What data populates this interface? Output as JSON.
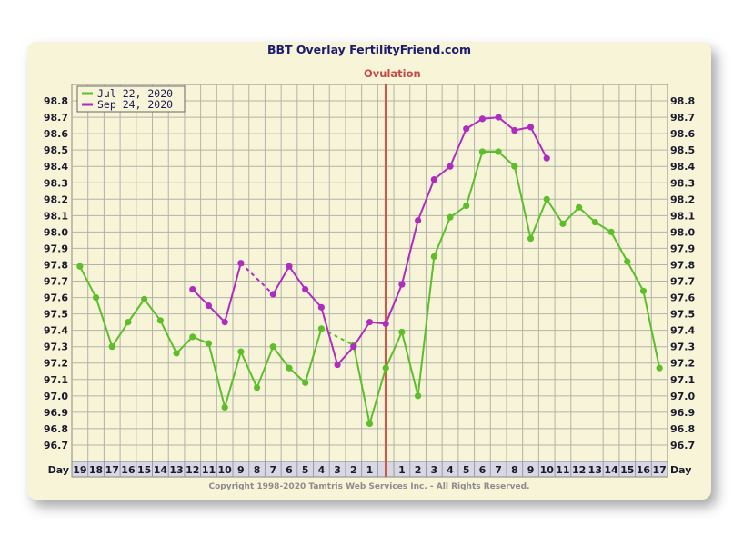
{
  "title": "BBT Overlay FertilityFriend.com",
  "ovulation_label": "Ovulation",
  "copyright": "Copyright 1998-2020 Tamtris Web Services Inc. - All Rights Reserved.",
  "x_axis_end_label": "Day",
  "colors": {
    "series1": "#5cbf2a",
    "series2": "#b02cc0",
    "ovulation": "#c85a4a",
    "grid": "#b3b3a8",
    "background": "#f7f4d8",
    "x_band": "#d8d8e4"
  },
  "chart_data": {
    "type": "line",
    "title": "BBT Overlay FertilityFriend.com",
    "x": [
      "19",
      "18",
      "17",
      "16",
      "15",
      "14",
      "13",
      "12",
      "11",
      "10",
      "9",
      "8",
      "7",
      "6",
      "5",
      "4",
      "3",
      "2",
      "1",
      "",
      "1",
      "2",
      "3",
      "4",
      "5",
      "6",
      "7",
      "8",
      "9",
      "10",
      "11",
      "12",
      "13",
      "14",
      "15",
      "16",
      "17"
    ],
    "ylim": [
      96.6,
      98.9
    ],
    "yticks": [
      96.7,
      96.8,
      96.9,
      97.0,
      97.1,
      97.2,
      97.3,
      97.4,
      97.5,
      97.6,
      97.7,
      97.8,
      97.9,
      98.0,
      98.1,
      98.2,
      98.3,
      98.4,
      98.5,
      98.6,
      98.7,
      98.8
    ],
    "ovulation_index": 19.5,
    "legend_position": "top-left",
    "grid": true,
    "series": [
      {
        "name": "Jul 22, 2020",
        "color": "#5cbf2a",
        "values": [
          97.79,
          97.6,
          97.3,
          97.45,
          97.59,
          97.46,
          97.26,
          97.36,
          97.32,
          96.93,
          97.27,
          97.05,
          97.3,
          97.17,
          97.08,
          97.41,
          null,
          97.31,
          96.83,
          97.17,
          97.39,
          97.0,
          97.85,
          98.09,
          98.16,
          98.49,
          98.49,
          98.4,
          97.96,
          98.2,
          98.05,
          98.15,
          98.06,
          98.0,
          97.82,
          97.64,
          97.17
        ],
        "dashed_gaps": [
          [
            15,
            17
          ]
        ]
      },
      {
        "name": "Sep 24, 2020",
        "color": "#b02cc0",
        "values": [
          null,
          null,
          null,
          null,
          null,
          null,
          null,
          97.65,
          97.55,
          97.45,
          97.81,
          null,
          97.62,
          97.79,
          97.65,
          97.54,
          97.19,
          97.3,
          97.45,
          97.44,
          97.68,
          98.07,
          98.32,
          98.4,
          98.63,
          98.69,
          98.7,
          98.62,
          98.64,
          98.45,
          null,
          null,
          null,
          null,
          null,
          null,
          null
        ],
        "dashed_gaps": [
          [
            10,
            12
          ]
        ]
      }
    ]
  }
}
